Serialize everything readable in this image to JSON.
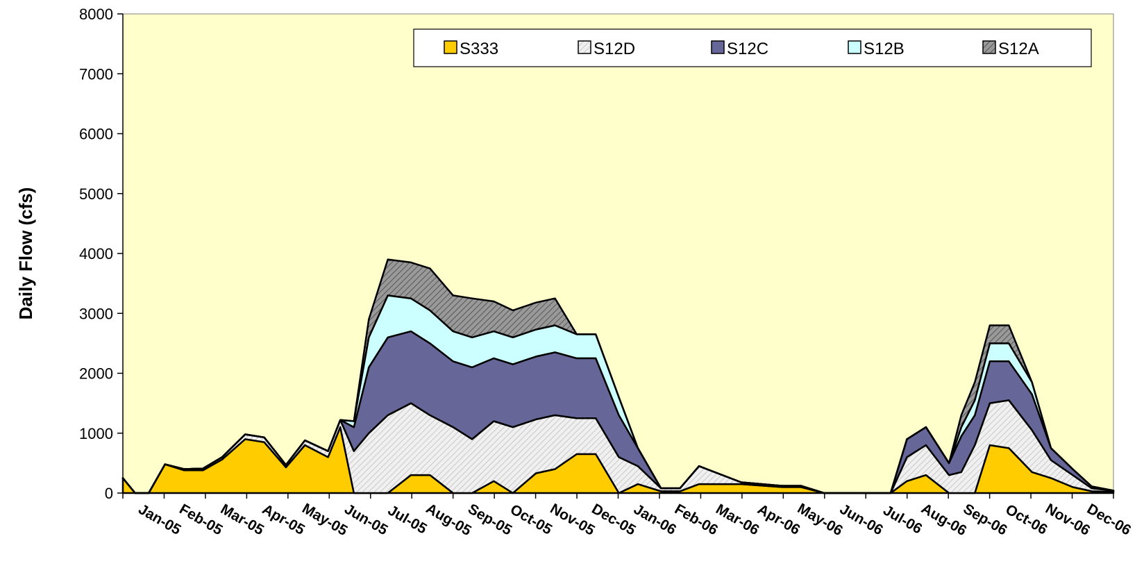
{
  "chart_data": {
    "type": "area",
    "stacked": true,
    "title": "",
    "xlabel": "",
    "ylabel": "Daily Flow (cfs)",
    "ylim": [
      0,
      8000
    ],
    "yticks": [
      0,
      1000,
      2000,
      3000,
      4000,
      5000,
      6000,
      7000,
      8000
    ],
    "xticks": [
      "Jan-05",
      "Feb-05",
      "Mar-05",
      "Apr-05",
      "May-05",
      "Jun-05",
      "Jul-05",
      "Aug-05",
      "Sep-05",
      "Oct-05",
      "Nov-05",
      "Dec-05",
      "Jan-06",
      "Feb-06",
      "Mar-06",
      "Apr-06",
      "May-06",
      "Jun-06",
      "Jul-06",
      "Aug-06",
      "Sep-06",
      "Oct-06",
      "Nov-06",
      "Dec-06"
    ],
    "grid": false,
    "background_color": "#FFFFCC",
    "legend_position": "top-right",
    "x": [
      "2005-01-01",
      "2005-01-10",
      "2005-01-20",
      "2005-02-01",
      "2005-02-15",
      "2005-03-01",
      "2005-03-15",
      "2005-04-01",
      "2005-04-15",
      "2005-05-01",
      "2005-05-15",
      "2005-06-01",
      "2005-06-10",
      "2005-06-20",
      "2005-07-01",
      "2005-07-15",
      "2005-08-01",
      "2005-08-15",
      "2005-09-01",
      "2005-09-15",
      "2005-10-01",
      "2005-10-15",
      "2005-11-01",
      "2005-11-15",
      "2005-12-01",
      "2005-12-15",
      "2006-01-01",
      "2006-01-15",
      "2006-02-01",
      "2006-02-15",
      "2006-03-01",
      "2006-04-01",
      "2006-05-01",
      "2006-05-15",
      "2006-06-01",
      "2006-07-01",
      "2006-07-20",
      "2006-08-01",
      "2006-08-15",
      "2006-09-01",
      "2006-09-10",
      "2006-09-20",
      "2006-10-01",
      "2006-10-15",
      "2006-11-01",
      "2006-11-15",
      "2006-12-01",
      "2006-12-15",
      "2006-12-31"
    ],
    "series": [
      {
        "name": "S333",
        "color": "#FFCC00",
        "values": [
          250,
          0,
          0,
          480,
          380,
          380,
          560,
          900,
          850,
          430,
          800,
          600,
          1100,
          0,
          0,
          0,
          300,
          300,
          0,
          0,
          200,
          0,
          330,
          400,
          650,
          650,
          0,
          150,
          30,
          30,
          150,
          150,
          100,
          100,
          0,
          0,
          0,
          200,
          300,
          0,
          0,
          0,
          800,
          750,
          350,
          250,
          100,
          30,
          20
        ]
      },
      {
        "name": "S12D",
        "color": "#E6E6E6",
        "values": [
          0,
          0,
          0,
          0,
          20,
          30,
          40,
          80,
          80,
          40,
          80,
          100,
          120,
          700,
          1000,
          1300,
          1200,
          1000,
          1100,
          900,
          1000,
          1100,
          900,
          900,
          600,
          600,
          600,
          300,
          50,
          50,
          300,
          30,
          20,
          20,
          0,
          0,
          0,
          400,
          500,
          300,
          350,
          800,
          700,
          800,
          700,
          300,
          200,
          50,
          20
        ]
      },
      {
        "name": "S12C",
        "color": "#666699",
        "values": [
          0,
          0,
          0,
          0,
          0,
          0,
          0,
          0,
          0,
          0,
          0,
          0,
          0,
          400,
          1100,
          1300,
          1200,
          1200,
          1100,
          1200,
          1050,
          1050,
          1050,
          1050,
          1000,
          1000,
          700,
          300,
          0,
          0,
          0,
          0,
          0,
          0,
          0,
          0,
          0,
          300,
          300,
          200,
          600,
          500,
          700,
          650,
          600,
          200,
          100,
          30,
          0
        ]
      },
      {
        "name": "S12B",
        "color": "#CCFFFF",
        "values": [
          0,
          0,
          0,
          0,
          0,
          0,
          0,
          0,
          0,
          0,
          0,
          0,
          0,
          100,
          500,
          700,
          550,
          550,
          500,
          500,
          450,
          450,
          450,
          450,
          400,
          400,
          300,
          0,
          0,
          0,
          0,
          0,
          0,
          0,
          0,
          0,
          0,
          0,
          0,
          0,
          150,
          250,
          300,
          300,
          200,
          0,
          0,
          0,
          0
        ]
      },
      {
        "name": "S12A",
        "color": "#999999",
        "values": [
          0,
          0,
          0,
          0,
          0,
          0,
          0,
          0,
          0,
          0,
          0,
          0,
          0,
          0,
          300,
          600,
          600,
          700,
          600,
          650,
          500,
          450,
          450,
          450,
          0,
          0,
          0,
          0,
          0,
          0,
          0,
          0,
          0,
          0,
          0,
          0,
          0,
          0,
          0,
          0,
          200,
          300,
          300,
          300,
          0,
          0,
          0,
          0,
          0
        ]
      }
    ]
  }
}
